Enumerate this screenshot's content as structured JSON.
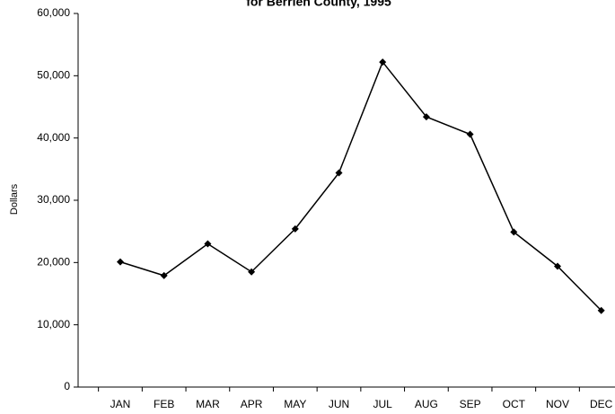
{
  "chart_data": {
    "type": "line",
    "title": "for Berrien County, 1995",
    "y_label": "Dollars",
    "categories": [
      "JAN",
      "FEB",
      "MAR",
      "APR",
      "MAY",
      "JUN",
      "JUL",
      "AUG",
      "SEP",
      "OCT",
      "NOV",
      "DEC"
    ],
    "series": [
      {
        "name": "Dollars",
        "color": "#000000",
        "values": [
          20100,
          17900,
          23000,
          18500,
          25400,
          34400,
          52200,
          43400,
          40600,
          24900,
          19400,
          12300
        ]
      }
    ],
    "ylim": [
      0,
      60000
    ],
    "yticks": [
      0,
      {
        "value": 10000,
        "label": "10,000"
      },
      {
        "value": 20000,
        "label": "20,000"
      },
      {
        "value": 30000,
        "label": "30,000"
      },
      {
        "value": 40000,
        "label": "40,000"
      },
      {
        "value": 50000,
        "label": "50,000"
      },
      {
        "value": 60000,
        "label": "60,000"
      }
    ],
    "grid": false
  }
}
